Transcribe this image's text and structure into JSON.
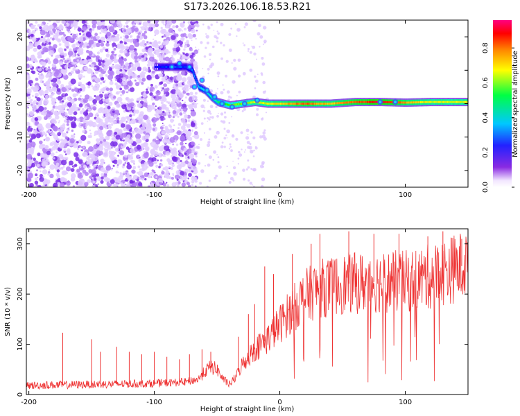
{
  "title": "S173.2026.106.18.53.R21",
  "chart_data": [
    {
      "type": "heatmap",
      "name": "spectrogram",
      "xlabel": "Height of straight line (km)",
      "ylabel": "Frequency (Hz)",
      "xlim": [
        -202,
        150
      ],
      "ylim": [
        -25,
        25
      ],
      "xticks": [
        -200,
        -100,
        0,
        100
      ],
      "yticks": [
        -20,
        -10,
        0,
        10,
        20
      ],
      "ridge": {
        "description": "Main spectral ridge: Doppler frequency vs height",
        "x": [
          -100,
          -90,
          -85,
          -80,
          -75,
          -70,
          -65,
          -60,
          -55,
          -50,
          -45,
          -40,
          -30,
          -20,
          -10,
          0,
          20,
          40,
          60,
          80,
          100,
          120,
          150
        ],
        "freq": [
          11,
          11,
          11,
          11,
          11,
          10,
          5,
          4,
          2,
          0.5,
          0,
          -0.5,
          0,
          0.5,
          0,
          0,
          0,
          0,
          0.5,
          0.5,
          0.3,
          0.5,
          0.5
        ],
        "amp": [
          0.1,
          0.15,
          0.15,
          0.15,
          0.15,
          0.2,
          0.25,
          0.3,
          0.35,
          0.4,
          0.5,
          0.6,
          0.6,
          0.7,
          0.7,
          0.75,
          0.85,
          0.75,
          0.85,
          0.95,
          0.8,
          0.7,
          0.7
        ]
      },
      "noise_region_x": [
        -202,
        -70
      ]
    },
    {
      "type": "colorbar",
      "label": "Normalized spectral amplitude",
      "range": [
        0,
        0.96
      ],
      "ticks": [
        "0.0",
        "0.2",
        "0.4",
        "0.6",
        "0.8"
      ],
      "tick_values": [
        0.0,
        0.2,
        0.4,
        0.6,
        0.8
      ]
    },
    {
      "type": "line",
      "name": "snr",
      "xlabel": "Height of straight line (km)",
      "ylabel": "SNR (10 * v/v)",
      "xlim": [
        -202,
        150
      ],
      "ylim": [
        0,
        330
      ],
      "xticks": [
        -200,
        -100,
        0,
        100
      ],
      "yticks": [
        0,
        100,
        200,
        300
      ],
      "color": "#ee3333",
      "baseline": {
        "x": [
          -202,
          -150,
          -100,
          -75,
          -65,
          -60,
          -55,
          -50,
          -45,
          -40,
          -35,
          -30,
          -20,
          -10,
          0,
          10,
          20,
          30,
          50,
          80,
          100,
          120,
          150
        ],
        "y": [
          18,
          20,
          22,
          25,
          30,
          45,
          55,
          50,
          30,
          20,
          35,
          60,
          90,
          110,
          140,
          170,
          195,
          210,
          220,
          225,
          225,
          235,
          260
        ]
      },
      "spikes": [
        {
          "x": -173,
          "y": 123
        },
        {
          "x": -150,
          "y": 110
        },
        {
          "x": -143,
          "y": 85
        },
        {
          "x": -130,
          "y": 95
        },
        {
          "x": -120,
          "y": 85
        },
        {
          "x": -110,
          "y": 80
        },
        {
          "x": -100,
          "y": 85
        },
        {
          "x": -90,
          "y": 75
        },
        {
          "x": -80,
          "y": 70
        },
        {
          "x": -72,
          "y": 80
        },
        {
          "x": -62,
          "y": 90
        },
        {
          "x": -55,
          "y": 85
        },
        {
          "x": -33,
          "y": 115
        },
        {
          "x": -25,
          "y": 160
        },
        {
          "x": -20,
          "y": 180
        },
        {
          "x": -12,
          "y": 255
        },
        {
          "x": -5,
          "y": 240
        },
        {
          "x": 10,
          "y": 280
        },
        {
          "x": 25,
          "y": 300
        },
        {
          "x": 32,
          "y": 320
        },
        {
          "x": 55,
          "y": 325
        },
        {
          "x": 75,
          "y": 320
        },
        {
          "x": 95,
          "y": 320
        },
        {
          "x": 118,
          "y": 315
        },
        {
          "x": 130,
          "y": 325
        },
        {
          "x": 145,
          "y": 310
        }
      ]
    }
  ]
}
